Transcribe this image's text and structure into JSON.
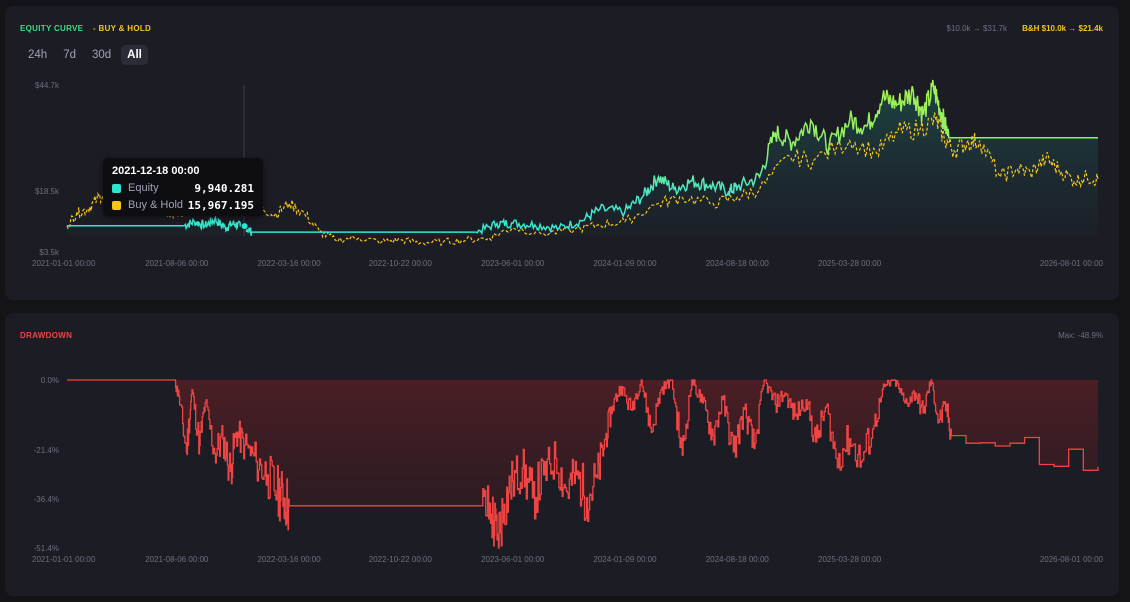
{
  "equity_panel": {
    "title": "EQUITY CURVE",
    "bh_title": "- BUY & HOLD",
    "summary_equity": "$10.0k → $31.7k",
    "summary_bh": "B&H $10.0k → $21.4k",
    "range_tabs": [
      "24h",
      "7d",
      "30d",
      "All"
    ],
    "active_tab": "All"
  },
  "tooltip": {
    "date": "2021-12-18 00:00",
    "equity_label": "Equity",
    "equity_value": "9,940.281",
    "bh_label": "Buy & Hold",
    "bh_value": "15,967.195"
  },
  "drawdown_panel": {
    "title": "DRAWDOWN",
    "max_label": "Max: -48.9%"
  },
  "colors": {
    "equity": "#4de8c2",
    "equity_peak": "#a6f04a",
    "buy_hold": "#f5c518",
    "drawdown": "#ef4444"
  },
  "chart_data": [
    {
      "type": "line",
      "title": "EQUITY CURVE",
      "y_ticks": [
        "$44.7k",
        "$18.5k",
        "$3.5k"
      ],
      "y_tick_values": [
        44.7,
        18.5,
        3.5
      ],
      "x_ticks": [
        "2021-01-01 00:00",
        "2021-08-06 00:00",
        "2022-03-16 00:00",
        "2022-10-22 00:00",
        "2023-06-01 00:00",
        "2024-01-09 00:00",
        "2024-08-18 00:00",
        "2025-03-28 00:00",
        "2026-08-01 00:00"
      ],
      "x_range": [
        "2021-01-01",
        "2026-08-01"
      ],
      "ylim": [
        3.5,
        44.7
      ],
      "series": [
        {
          "name": "Equity",
          "x": [
            "2021-01-01",
            "2021-01-20",
            "2021-03-01",
            "2021-05-01",
            "2021-07-01",
            "2021-08-20",
            "2021-09-10",
            "2021-10-01",
            "2021-10-20",
            "2021-11-10",
            "2021-11-25",
            "2021-12-10",
            "2021-12-18",
            "2022-01-01",
            "2022-03-16",
            "2022-06-01",
            "2022-09-01",
            "2022-10-22",
            "2022-12-01",
            "2023-01-15",
            "2023-02-15",
            "2023-03-20",
            "2023-05-01",
            "2023-06-01",
            "2023-07-15",
            "2023-09-01",
            "2023-10-15",
            "2023-11-20",
            "2024-01-09",
            "2024-02-15",
            "2024-03-15",
            "2024-04-15",
            "2024-05-20",
            "2024-06-25",
            "2024-08-01",
            "2024-08-18",
            "2024-10-01",
            "2024-11-01",
            "2024-12-05",
            "2025-01-10",
            "2025-02-15",
            "2025-03-28",
            "2025-05-01",
            "2025-06-01",
            "2025-07-01",
            "2025-08-01",
            "2025-08-20",
            "2025-09-10",
            "2025-09-25",
            "2025-10-10",
            "2025-11-01",
            "2026-08-01"
          ],
          "values": [
            10.0,
            10.0,
            10.0,
            10.0,
            10.0,
            10.0,
            11.0,
            10.0,
            11.5,
            9.5,
            10.5,
            9.9,
            9.9,
            8.4,
            8.4,
            8.4,
            8.4,
            8.4,
            8.4,
            8.4,
            8.4,
            8.4,
            10.5,
            10.6,
            10.2,
            9.4,
            11.2,
            14.0,
            13.5,
            17.5,
            22.0,
            19.0,
            21.0,
            20.0,
            18.5,
            19.5,
            22.0,
            33.0,
            30.5,
            36.0,
            29.5,
            36.0,
            34.5,
            41.5,
            40.0,
            43.0,
            37.5,
            44.0,
            38.0,
            31.7,
            31.7,
            31.7
          ]
        },
        {
          "name": "Buy & Hold",
          "x": [
            "2021-01-01",
            "2021-01-20",
            "2021-02-10",
            "2021-03-01",
            "2021-03-20",
            "2021-04-10",
            "2021-05-01",
            "2021-05-20",
            "2021-06-10",
            "2021-07-01",
            "2021-07-20",
            "2021-08-06",
            "2021-09-01",
            "2021-09-20",
            "2021-10-10",
            "2021-11-01",
            "2021-11-20",
            "2021-12-18",
            "2022-01-15",
            "2022-02-15",
            "2022-03-16",
            "2022-04-15",
            "2022-05-15",
            "2022-06-15",
            "2022-08-01",
            "2022-09-15",
            "2022-10-22",
            "2022-12-01",
            "2023-01-15",
            "2023-03-01",
            "2023-04-15",
            "2023-06-01",
            "2023-08-01",
            "2023-10-01",
            "2023-11-20",
            "2024-01-09",
            "2024-03-15",
            "2024-05-01",
            "2024-07-01",
            "2024-08-18",
            "2024-10-01",
            "2024-12-01",
            "2025-01-15",
            "2025-03-28",
            "2025-05-20",
            "2025-07-01",
            "2025-08-15",
            "2025-09-15",
            "2025-10-01",
            "2025-10-20",
            "2025-11-15",
            "2025-12-10",
            "2026-01-20",
            "2026-02-20",
            "2026-03-20",
            "2026-04-20",
            "2026-05-15",
            "2026-06-15",
            "2026-07-10",
            "2026-08-01"
          ],
          "values": [
            10.0,
            13.0,
            14.0,
            16.5,
            18.5,
            17.0,
            16.0,
            14.5,
            15.0,
            14.0,
            13.5,
            12.5,
            14.0,
            13.0,
            16.0,
            18.0,
            16.5,
            15.9,
            15.0,
            12.5,
            15.5,
            13.0,
            8.5,
            6.5,
            7.0,
            6.0,
            6.5,
            5.8,
            6.0,
            6.5,
            7.0,
            9.5,
            8.0,
            9.0,
            10.2,
            11.0,
            15.5,
            17.0,
            15.5,
            17.0,
            19.0,
            27.0,
            26.0,
            31.0,
            28.0,
            33.0,
            34.0,
            36.0,
            31.5,
            28.5,
            30.5,
            31.0,
            22.0,
            24.0,
            23.0,
            26.5,
            24.0,
            21.0,
            22.0,
            21.4
          ]
        }
      ]
    },
    {
      "type": "area",
      "title": "DRAWDOWN",
      "y_ticks": [
        "0.0%",
        "-21.4%",
        "-36.4%",
        "-51.4%"
      ],
      "y_tick_values": [
        0.0,
        -21.4,
        -36.4,
        -51.4
      ],
      "x_ticks": [
        "2021-01-01 00:00",
        "2021-08-06 00:00",
        "2022-03-16 00:00",
        "2022-10-22 00:00",
        "2023-06-01 00:00",
        "2024-01-09 00:00",
        "2024-08-18 00:00",
        "2025-03-28 00:00",
        "2026-08-01 00:00"
      ],
      "x_range": [
        "2021-01-01",
        "2026-08-01"
      ],
      "ylim": [
        -51.4,
        0.0
      ],
      "series": [
        {
          "name": "Drawdown",
          "x": [
            "2021-01-01",
            "2021-08-01",
            "2021-08-10",
            "2021-08-25",
            "2021-09-05",
            "2021-09-20",
            "2021-10-01",
            "2021-10-20",
            "2021-11-05",
            "2021-11-20",
            "2021-12-01",
            "2021-12-18",
            "2022-01-10",
            "2022-02-01",
            "2022-02-20",
            "2022-03-05",
            "2022-03-16",
            "2022-10-22",
            "2023-01-01",
            "2023-04-01",
            "2023-04-20",
            "2023-05-01",
            "2023-05-15",
            "2023-06-01",
            "2023-06-20",
            "2023-07-10",
            "2023-08-01",
            "2023-08-25",
            "2023-09-15",
            "2023-10-05",
            "2023-10-25",
            "2023-11-15",
            "2023-12-01",
            "2023-12-15",
            "2024-01-01",
            "2024-01-20",
            "2024-02-10",
            "2024-03-01",
            "2024-03-20",
            "2024-04-10",
            "2024-05-01",
            "2024-05-20",
            "2024-06-10",
            "2024-07-01",
            "2024-07-20",
            "2024-08-10",
            "2024-09-01",
            "2024-09-20",
            "2024-10-10",
            "2024-11-01",
            "2024-11-20",
            "2024-12-10",
            "2025-01-01",
            "2025-01-20",
            "2025-02-10",
            "2025-03-01",
            "2025-03-28",
            "2025-04-20",
            "2025-05-15",
            "2025-06-05",
            "2025-06-25",
            "2025-07-15",
            "2025-08-05",
            "2025-08-20",
            "2025-09-05",
            "2025-09-20",
            "2025-10-05",
            "2025-10-15",
            "2026-08-01"
          ],
          "values": [
            0.0,
            0.0,
            -5.0,
            -22.0,
            -3.0,
            -20.0,
            -7.0,
            -22.5,
            -18.0,
            -28.0,
            -16.0,
            -20.0,
            -25.0,
            -29.0,
            -34.0,
            -36.0,
            -38.5,
            -38.5,
            -38.5,
            -38.5,
            -41.0,
            -48.9,
            -38.0,
            -31.0,
            -27.0,
            -36.0,
            -29.0,
            -24.0,
            -34.0,
            -29.0,
            -36.0,
            -30.0,
            -18.0,
            -8.0,
            -2.0,
            -9.0,
            0.0,
            -16.0,
            -3.0,
            0.0,
            -23.0,
            0.0,
            -7.0,
            -17.0,
            -6.0,
            -22.0,
            -9.0,
            -21.0,
            0.0,
            -7.5,
            -4.0,
            -11.0,
            -6.0,
            -19.0,
            -8.0,
            -24.0,
            -18.0,
            -25.0,
            -14.0,
            -2.0,
            0.0,
            -7.0,
            -4.0,
            -10.0,
            0.0,
            -13.0,
            -8.0,
            -17.0,
            -26.6
          ]
        }
      ]
    }
  ]
}
